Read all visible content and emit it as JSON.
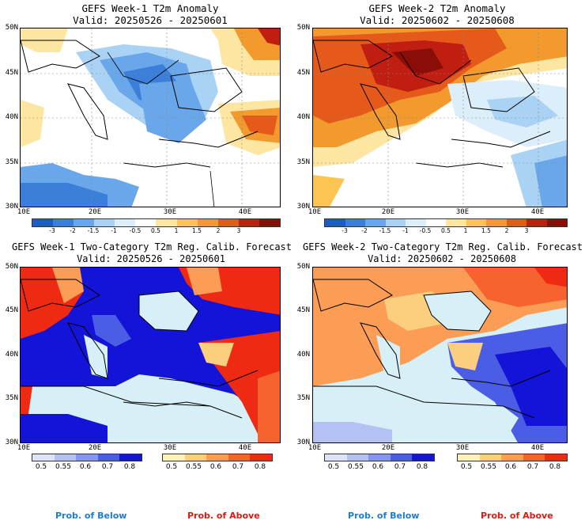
{
  "panels": {
    "tl": {
      "title": "GEFS Week-1 T2m Anomaly",
      "valid": "Valid: 20250526 - 20250601"
    },
    "tr": {
      "title": "GEFS Week-2 T2m Anomaly",
      "valid": "Valid: 20250602 - 20250608"
    },
    "bl": {
      "title": "GEFS Week-1 Two-Category T2m Reg. Calib. Forecast",
      "valid": "Valid: 20250526 - 20250601"
    },
    "br": {
      "title": "GEFS Week-2 Two-Category T2m Reg. Calib. Forecast",
      "valid": "Valid: 20250602 - 20250608"
    }
  },
  "axes": {
    "lat_labels": [
      "50N",
      "45N",
      "40N",
      "35N",
      "30N"
    ],
    "lon_labels": [
      "10E",
      "20E",
      "30E",
      "40E"
    ]
  },
  "anomaly_legend": {
    "labels": [
      "-3",
      "-2",
      "-1.5",
      "-1",
      "-0.5",
      "0.5",
      "1",
      "1.5",
      "2",
      "3"
    ],
    "colors": [
      "#1c5bc9",
      "#3b7fdb",
      "#6aa7ea",
      "#a9d2f4",
      "#dceefa",
      "#ffffff",
      "#fde6a1",
      "#fcc451",
      "#f29a2e",
      "#e55a1b",
      "#c01e10",
      "#8b0d08"
    ]
  },
  "prob_legend": {
    "labels": [
      "0.5",
      "0.55",
      "0.6",
      "0.7",
      "0.8"
    ],
    "below_colors": [
      "#dce4fb",
      "#b4c2f3",
      "#8497ea",
      "#4a5de4",
      "#1414d8"
    ],
    "above_colors": [
      "#fff2b8",
      "#fccf7f",
      "#fb9d55",
      "#f7632f",
      "#ef2a12"
    ]
  },
  "footer": {
    "below": "Prob. of Below",
    "above": "Prob. of Above"
  },
  "colors": {
    "below_text": "#1c7cd6",
    "above_text": "#e01a10",
    "water": "#d7f0f7"
  }
}
